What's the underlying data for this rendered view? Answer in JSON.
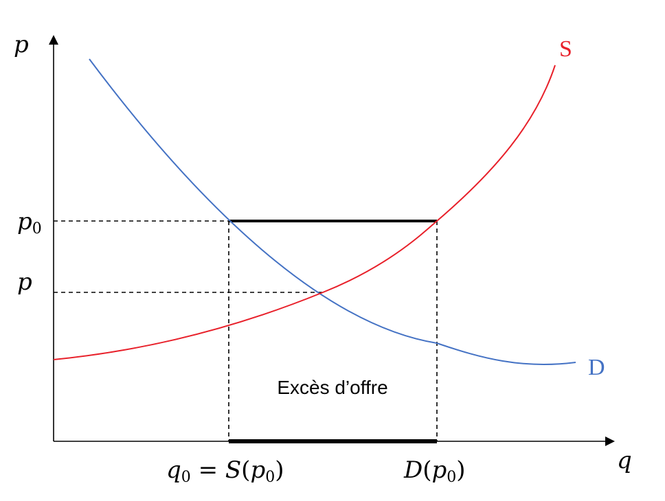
{
  "axes": {
    "y_label": "p",
    "x_label": "q"
  },
  "curves": {
    "supply": {
      "label": "S",
      "color": "#e8202a"
    },
    "demand": {
      "label": "D",
      "color": "#4472c4"
    }
  },
  "y_ticks": {
    "p0": {
      "base": "p",
      "sub": "0"
    },
    "p": {
      "base": "p"
    }
  },
  "x_ticks": {
    "q0": {
      "base": "q",
      "sub": "0",
      "equals": " = ",
      "func": "S",
      "open": "(",
      "arg": "p",
      "arg_sub": "0",
      "close": ")"
    },
    "dp0": {
      "func": "D",
      "open": "(",
      "arg": "p",
      "arg_sub": "0",
      "close": ")"
    }
  },
  "region": {
    "label": "Excès d’offre"
  },
  "colors": {
    "axis": "#000000",
    "supply": "#e8202a",
    "demand": "#4472c4",
    "guide": "#000000"
  }
}
